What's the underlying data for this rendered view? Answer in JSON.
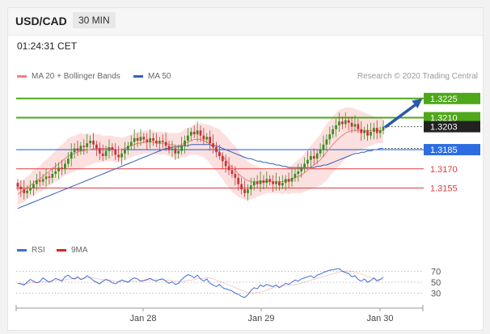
{
  "header": {
    "pair": "USD/CAD",
    "timeframe": "30 MIN"
  },
  "time": "01:24:31 CET",
  "legend": {
    "ma20_label": "MA 20 + Bollinger Bands",
    "ma50_label": "MA 50",
    "rsi_label": "RSI",
    "ma9_label": "9MA",
    "credit": "Research © 2020 Trading Central"
  },
  "colors": {
    "resistance": "#4ea81a",
    "current": "#222222",
    "pivot": "#2d6de1",
    "support": "#e03c3c",
    "bull_candle": "#3d8b1e",
    "bear_candle": "#c83232",
    "ma20": "#f08080",
    "ma50": "#3561b7",
    "bands": "#fbd6d6",
    "arrow": "#2a5aa8"
  },
  "chart_data": [
    {
      "type": "candlestick",
      "title": "USD/CAD",
      "x_tick_labels": [
        "Jan 28",
        "Jan 29",
        "Jan 30"
      ],
      "ylim": [
        1.313,
        1.3235
      ],
      "levels": [
        {
          "value": 1.3225,
          "label": "1.3225",
          "kind": "resistance"
        },
        {
          "value": 1.321,
          "label": "1.3210",
          "kind": "resistance"
        },
        {
          "value": 1.3203,
          "label": "1.3203",
          "kind": "current"
        },
        {
          "value": 1.3185,
          "label": "1.3185",
          "kind": "pivot"
        },
        {
          "value": 1.317,
          "label": "1.3170",
          "kind": "support"
        },
        {
          "value": 1.3155,
          "label": "1.3155",
          "kind": "support"
        }
      ],
      "close": [
        1.3156,
        1.3154,
        1.3151,
        1.3153,
        1.3155,
        1.3158,
        1.3161,
        1.316,
        1.3162,
        1.3164,
        1.3163,
        1.3166,
        1.3168,
        1.3171,
        1.317,
        1.3174,
        1.3178,
        1.3183,
        1.3186,
        1.3184,
        1.3188,
        1.3187,
        1.319,
        1.3192,
        1.3189,
        1.3186,
        1.3182,
        1.318,
        1.3184,
        1.3187,
        1.3185,
        1.3181,
        1.3179,
        1.3182,
        1.3185,
        1.3188,
        1.3191,
        1.3194,
        1.3192,
        1.3195,
        1.3193,
        1.3191,
        1.3194,
        1.3192,
        1.319,
        1.3192,
        1.3191,
        1.3188,
        1.3185,
        1.3186,
        1.3182,
        1.3184,
        1.3188,
        1.3192,
        1.3196,
        1.3199,
        1.3197,
        1.32,
        1.3196,
        1.3193,
        1.3195,
        1.319,
        1.3187,
        1.3183,
        1.318,
        1.3176,
        1.3172,
        1.3169,
        1.3166,
        1.3163,
        1.3158,
        1.3154,
        1.3151,
        1.3154,
        1.3157,
        1.316,
        1.3158,
        1.3161,
        1.3159,
        1.3162,
        1.316,
        1.3158,
        1.316,
        1.3157,
        1.3159,
        1.3162,
        1.316,
        1.3163,
        1.3166,
        1.3168,
        1.3171,
        1.3174,
        1.3177,
        1.318,
        1.3178,
        1.3182,
        1.3185,
        1.3189,
        1.3193,
        1.3197,
        1.3201,
        1.3204,
        1.3207,
        1.3205,
        1.3208,
        1.3206,
        1.3203,
        1.3205,
        1.3201,
        1.3198,
        1.32,
        1.3196,
        1.3199,
        1.3202,
        1.3198,
        1.32,
        1.3203
      ],
      "ma20": [
        1.315,
        1.3152,
        1.3153,
        1.3155,
        1.3157,
        1.3159,
        1.3161,
        1.3162,
        1.3164,
        1.3166,
        1.3168,
        1.317,
        1.3172,
        1.3174,
        1.3176,
        1.3178,
        1.318,
        1.3181,
        1.3182,
        1.3183,
        1.3184,
        1.3184,
        1.3185,
        1.3185,
        1.3186,
        1.3186,
        1.3186,
        1.3186,
        1.3186,
        1.3186,
        1.3186,
        1.3185,
        1.3185,
        1.3185,
        1.3186,
        1.3187,
        1.3188,
        1.3189,
        1.319,
        1.319,
        1.3191,
        1.3191,
        1.3191,
        1.3191,
        1.319,
        1.319,
        1.319,
        1.319,
        1.3189,
        1.3189,
        1.3188,
        1.3188,
        1.3189,
        1.319,
        1.3191,
        1.3192,
        1.3193,
        1.3193,
        1.3193,
        1.3192,
        1.3191,
        1.3189,
        1.3187,
        1.3185,
        1.3183,
        1.318,
        1.3177,
        1.3174,
        1.3171,
        1.3169,
        1.3166,
        1.3164,
        1.3162,
        1.3161,
        1.316,
        1.316,
        1.316,
        1.316,
        1.316,
        1.316,
        1.316,
        1.316,
        1.316,
        1.316,
        1.316,
        1.3161,
        1.3161,
        1.3162,
        1.3163,
        1.3164,
        1.3165,
        1.3167,
        1.3169,
        1.3171,
        1.3173,
        1.3175,
        1.3177,
        1.318,
        1.3183,
        1.3186,
        1.3189,
        1.3192,
        1.3194,
        1.3196,
        1.3198,
        1.3199,
        1.32,
        1.32,
        1.32,
        1.32,
        1.32,
        1.32,
        1.32,
        1.32,
        1.32,
        1.32,
        1.32
      ],
      "ma50": [
        1.3139,
        1.314,
        1.3141,
        1.3142,
        1.3143,
        1.3144,
        1.3145,
        1.3146,
        1.3147,
        1.3148,
        1.3149,
        1.315,
        1.3151,
        1.3152,
        1.3153,
        1.3154,
        1.3155,
        1.3156,
        1.3157,
        1.3158,
        1.3159,
        1.316,
        1.3161,
        1.3162,
        1.3163,
        1.3164,
        1.3165,
        1.3166,
        1.3167,
        1.3168,
        1.3169,
        1.317,
        1.3171,
        1.3172,
        1.3173,
        1.3174,
        1.3175,
        1.3176,
        1.3177,
        1.3178,
        1.3179,
        1.318,
        1.3181,
        1.3182,
        1.3183,
        1.3184,
        1.3185,
        1.3186,
        1.3186,
        1.3187,
        1.3187,
        1.3187,
        1.3188,
        1.3188,
        1.3188,
        1.3189,
        1.3189,
        1.3189,
        1.3189,
        1.3189,
        1.3189,
        1.3189,
        1.3188,
        1.3188,
        1.3187,
        1.3186,
        1.3185,
        1.3184,
        1.3183,
        1.3182,
        1.3181,
        1.318,
        1.3179,
        1.3178,
        1.3178,
        1.3177,
        1.3176,
        1.3176,
        1.3175,
        1.3175,
        1.3174,
        1.3174,
        1.3173,
        1.3173,
        1.3172,
        1.3172,
        1.3171,
        1.3171,
        1.3171,
        1.3171,
        1.3171,
        1.3171,
        1.3171,
        1.3171,
        1.3171,
        1.3172,
        1.3172,
        1.3173,
        1.3173,
        1.3174,
        1.3175,
        1.3176,
        1.3177,
        1.3178,
        1.3179,
        1.318,
        1.3181,
        1.3182,
        1.3182,
        1.3183,
        1.3183,
        1.3184,
        1.3184,
        1.3185,
        1.3185,
        1.3186,
        1.3186
      ],
      "band_width": [
        0.0009,
        0.0009,
        0.0009,
        0.0009,
        0.0009,
        0.001,
        0.001,
        0.001,
        0.0011,
        0.0011,
        0.0011,
        0.0012,
        0.0012,
        0.0013,
        0.0013,
        0.0013,
        0.0014,
        0.0014,
        0.0014,
        0.0014,
        0.0014,
        0.0013,
        0.0013,
        0.0012,
        0.0012,
        0.0011,
        0.0011,
        0.001,
        0.001,
        0.001,
        0.001,
        0.001,
        0.001,
        0.0009,
        0.0009,
        0.0009,
        0.0009,
        0.0009,
        0.0009,
        0.0009,
        0.0009,
        0.0009,
        0.0009,
        0.0009,
        0.0009,
        0.0009,
        0.0009,
        0.0009,
        0.0009,
        0.0009,
        0.001,
        0.001,
        0.001,
        0.0011,
        0.0011,
        0.0011,
        0.0012,
        0.0012,
        0.0013,
        0.0013,
        0.0014,
        0.0015,
        0.0016,
        0.0017,
        0.0018,
        0.0018,
        0.0019,
        0.0019,
        0.0019,
        0.0019,
        0.0018,
        0.0017,
        0.0016,
        0.0015,
        0.0014,
        0.0013,
        0.0012,
        0.0011,
        0.001,
        0.0009,
        0.0009,
        0.0009,
        0.0009,
        0.0009,
        0.001,
        0.001,
        0.0011,
        0.0011,
        0.0012,
        0.0013,
        0.0014,
        0.0015,
        0.0016,
        0.0017,
        0.0018,
        0.0019,
        0.002,
        0.0021,
        0.0022,
        0.0022,
        0.0022,
        0.0022,
        0.0022,
        0.0021,
        0.002,
        0.0019,
        0.0018,
        0.0017,
        0.0016,
        0.0015,
        0.0014,
        0.0013,
        0.0012,
        0.0011,
        0.001,
        0.001,
        0.001,
        0.001,
        0.001
      ],
      "forecast_arrow": {
        "from": 1.3203,
        "to": 1.3225
      }
    },
    {
      "type": "line",
      "series": [
        {
          "name": "RSI"
        },
        {
          "name": "9MA"
        }
      ],
      "y_tick_labels": [
        "70",
        "50",
        "30"
      ],
      "ylim": [
        10,
        90
      ],
      "rsi": [
        48,
        47,
        45,
        50,
        55,
        52,
        49,
        51,
        58,
        54,
        50,
        53,
        57,
        55,
        52,
        60,
        63,
        58,
        56,
        60,
        55,
        57,
        62,
        58,
        53,
        50,
        47,
        52,
        55,
        53,
        49,
        47,
        51,
        54,
        52,
        50,
        55,
        58,
        56,
        52,
        53,
        55,
        57,
        54,
        52,
        55,
        56,
        52,
        48,
        51,
        46,
        48,
        55,
        60,
        64,
        62,
        58,
        63,
        56,
        52,
        56,
        48,
        45,
        42,
        46,
        40,
        38,
        36,
        34,
        30,
        28,
        24,
        22,
        27,
        35,
        40,
        38,
        45,
        42,
        46,
        44,
        42,
        45,
        40,
        44,
        48,
        46,
        50,
        54,
        52,
        56,
        58,
        60,
        62,
        58,
        63,
        65,
        68,
        70,
        72,
        73,
        74,
        75,
        70,
        68,
        66,
        60,
        62,
        55,
        52,
        56,
        50,
        53,
        58,
        52,
        55,
        59
      ]
    }
  ]
}
